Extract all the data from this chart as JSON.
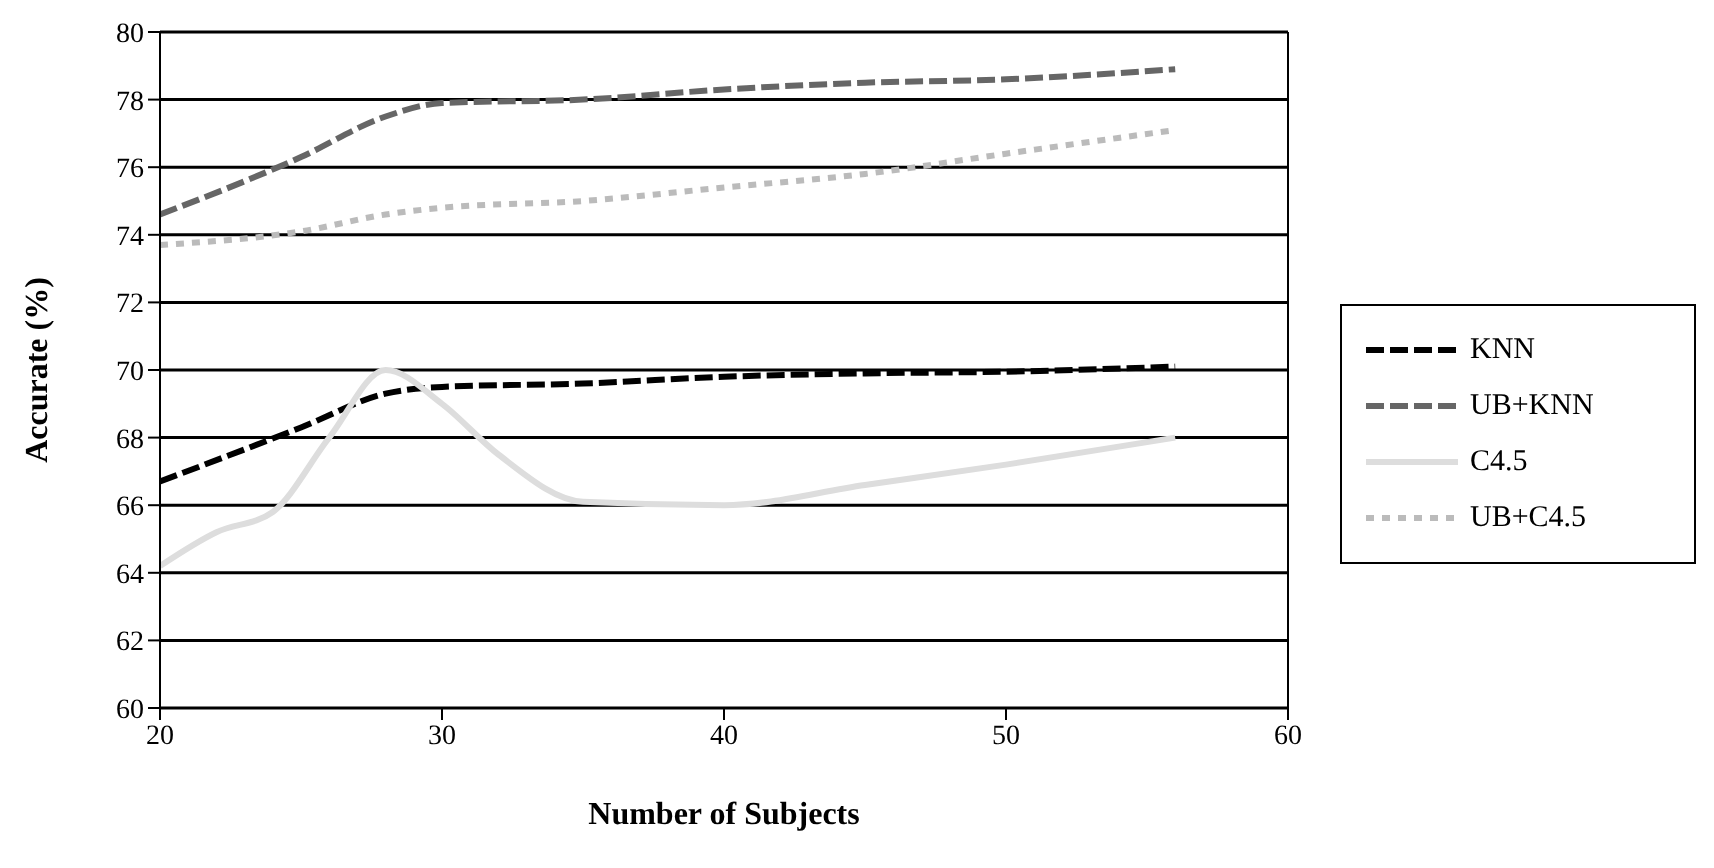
{
  "chart_data": {
    "type": "line",
    "xlabel": "Number of Subjects",
    "ylabel": "Accurate (%)",
    "xlim": [
      20,
      60
    ],
    "xticks": [
      20,
      30,
      40,
      50,
      60
    ],
    "ylim": [
      60,
      80
    ],
    "yticks": [
      60,
      62,
      64,
      66,
      68,
      70,
      72,
      74,
      76,
      78,
      80
    ],
    "grid": "y",
    "legend": "right",
    "marker": "none",
    "series": [
      {
        "name": "KNN",
        "color": "#000000",
        "line_style": "dashed",
        "x": [
          20,
          25,
          28,
          30,
          35,
          40,
          45,
          50,
          56
        ],
        "values": [
          66.7,
          68.3,
          69.3,
          69.5,
          69.6,
          69.8,
          69.9,
          69.95,
          70.1
        ]
      },
      {
        "name": "UB+KNN",
        "color": "#666666",
        "line_style": "dashed",
        "x": [
          20,
          25,
          28,
          30,
          35,
          40,
          45,
          50,
          56
        ],
        "values": [
          74.6,
          76.3,
          77.5,
          77.9,
          78.0,
          78.3,
          78.5,
          78.6,
          78.9
        ]
      },
      {
        "name": "C4.5",
        "color": "#dddddd",
        "line_style": "solid",
        "x": [
          20,
          22,
          24,
          26,
          28,
          30,
          32,
          35,
          40,
          45,
          50,
          56
        ],
        "values": [
          64.2,
          65.2,
          65.8,
          68,
          70,
          69,
          67.5,
          66.1,
          66,
          66.6,
          67.2,
          68
        ]
      },
      {
        "name": "UB+C4.5",
        "color": "#bbbbbb",
        "line_style": "dotted",
        "x": [
          20,
          25,
          28,
          30,
          35,
          40,
          45,
          50,
          56
        ],
        "values": [
          73.7,
          74.1,
          74.6,
          74.8,
          75,
          75.4,
          75.8,
          76.4,
          77.1
        ]
      }
    ]
  }
}
